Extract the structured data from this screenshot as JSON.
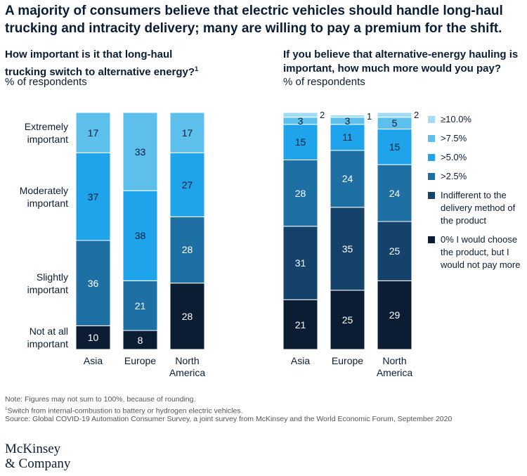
{
  "header": {
    "title": "A majority of consumers believe that electric vehicles should handle long-haul trucking and intracity delivery; many are willing to pay a premium for the shift."
  },
  "chart_data": [
    {
      "type": "bar",
      "stacked": true,
      "legend": "left",
      "title": "How important is it that long-haul trucking switch to alternative energy?",
      "title_note": "1",
      "subtitle": "% of respondents",
      "categories": [
        "Asia",
        "Europe",
        "North America"
      ],
      "ylim": [
        0,
        100
      ],
      "series": [
        {
          "name": "Not at all important",
          "color": "#0b1d33",
          "values": [
            10,
            8,
            28
          ]
        },
        {
          "name": "Slightly important",
          "color": "#1d6fa4",
          "values": [
            36,
            21,
            28
          ]
        },
        {
          "name": "Moderately important",
          "color": "#1fa3ea",
          "values": [
            37,
            38,
            27
          ]
        },
        {
          "name": "Extremely important",
          "color": "#5dc0ec",
          "values": [
            17,
            33,
            17
          ]
        }
      ]
    },
    {
      "type": "bar",
      "stacked": true,
      "legend": "right",
      "title": "If you believe that alternative-energy hauling is important, how much more would you pay?",
      "subtitle": "% of respondents",
      "categories": [
        "Asia",
        "Europe",
        "North America"
      ],
      "ylim": [
        0,
        100
      ],
      "series": [
        {
          "name": "0% I would choose the product, but I would not pay more",
          "color": "#0b1d33",
          "values": [
            21,
            25,
            29
          ]
        },
        {
          "name": "Indifferent to the delivery method of the product",
          "color": "#15426a",
          "values": [
            31,
            35,
            25
          ]
        },
        {
          "name": ">2.5%",
          "color": "#1d6fa4",
          "values": [
            28,
            24,
            24
          ]
        },
        {
          "name": ">5.0%",
          "color": "#1fa3ea",
          "values": [
            15,
            11,
            15
          ]
        },
        {
          "name": ">7.5%",
          "color": "#5dc0ec",
          "values": [
            3,
            3,
            5
          ]
        },
        {
          "name": "≥10.0%",
          "color": "#a3dcf5",
          "values": [
            2,
            1,
            2
          ]
        }
      ]
    }
  ],
  "notes": {
    "note": "Note: Figures may not sum to 100%, because of rounding.",
    "footnote_marker": "1",
    "footnote": "Switch from internal-combustion to battery or hydrogen electric vehicles.",
    "source": "Source: Global COVID-19 Automation Consumer Survey, a joint survey from McKinsey and the World Economic Forum, September 2020"
  },
  "logo": {
    "line1": "McKinsey",
    "line2": "& Company"
  }
}
